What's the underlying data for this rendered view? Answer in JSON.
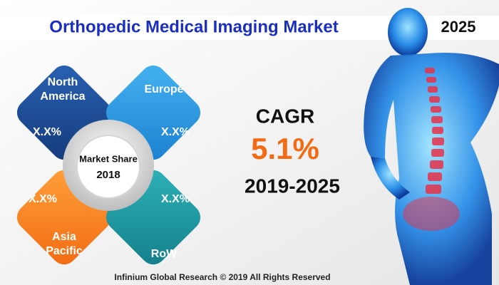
{
  "header": {
    "title": "Orthopedic Medical Imaging Market",
    "year": "2025"
  },
  "regions": [
    {
      "label_lines": [
        "North",
        "America"
      ],
      "value": "X.X%"
    },
    {
      "label_lines": [
        "Europe"
      ],
      "value": "X.X%"
    },
    {
      "label_lines": [
        "Asia",
        "Pacific"
      ],
      "value": "X.X%"
    },
    {
      "label_lines": [
        "RoW"
      ],
      "value": "X.X%"
    }
  ],
  "center": {
    "label": "Market Share",
    "year": "2018"
  },
  "cagr": {
    "label": "CAGR",
    "value": "5.1%",
    "period": "2019-2025"
  },
  "footer": "Infinium Global Research © 2019 All Rights Reserved"
}
